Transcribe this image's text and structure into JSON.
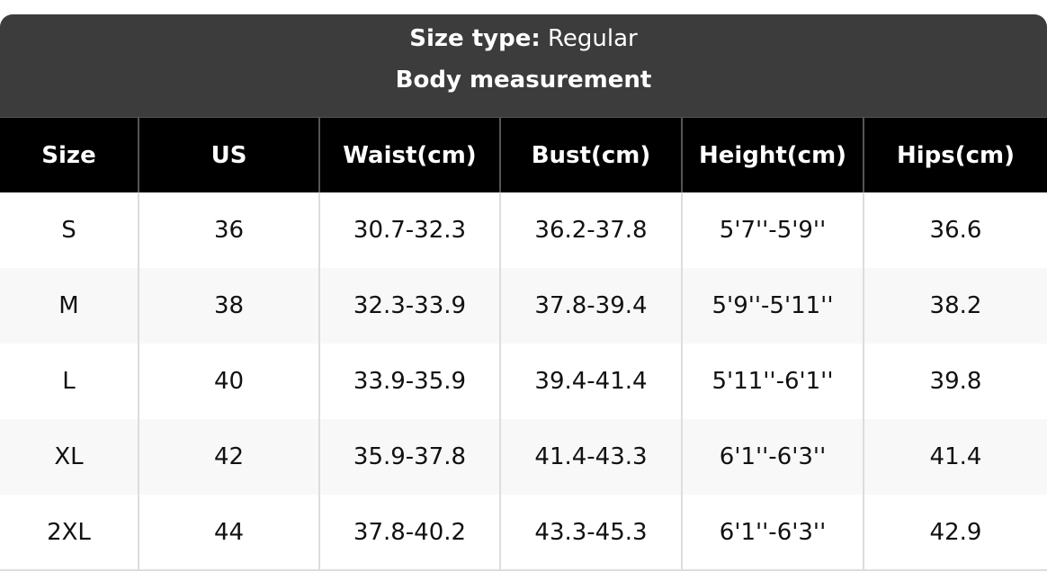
{
  "header": {
    "label": "Size type:",
    "value": "Regular",
    "subtitle": "Body measurement"
  },
  "table": {
    "columns": [
      "Size",
      "US",
      "Waist(cm)",
      "Bust(cm)",
      "Height(cm)",
      "Hips(cm)"
    ],
    "rows": [
      [
        "S",
        "36",
        "30.7-32.3",
        "36.2-37.8",
        "5'7''-5'9''",
        "36.6"
      ],
      [
        "M",
        "38",
        "32.3-33.9",
        "37.8-39.4",
        "5'9''-5'11''",
        "38.2"
      ],
      [
        "L",
        "40",
        "33.9-35.9",
        "39.4-41.4",
        "5'11''-6'1''",
        "39.8"
      ],
      [
        "XL",
        "42",
        "35.9-37.8",
        "41.4-43.3",
        "6'1''-6'3''",
        "41.4"
      ],
      [
        "2XL",
        "44",
        "37.8-40.2",
        "43.3-45.3",
        "6'1''-6'3''",
        "42.9"
      ]
    ]
  }
}
